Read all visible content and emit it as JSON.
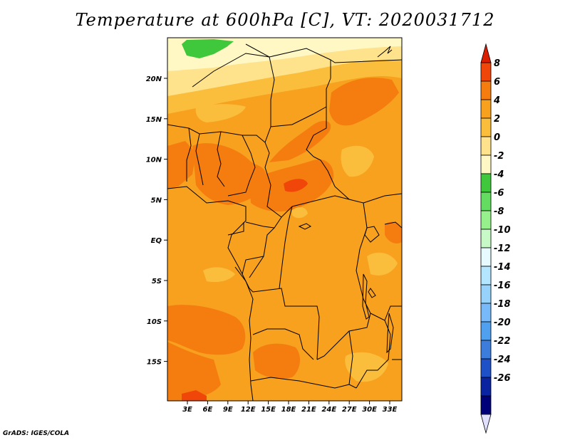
{
  "title": "Temperature at 600hPa [C], VT: 2020031712",
  "credit": "GrADS: IGES/COLA",
  "lat_ticks": [
    "20N",
    "15N",
    "10N",
    "5N",
    "EQ",
    "5S",
    "10S",
    "15S"
  ],
  "lon_ticks": [
    "3E",
    "6E",
    "9E",
    "12E",
    "15E",
    "18E",
    "21E",
    "24E",
    "27E",
    "30E",
    "33E"
  ],
  "colorbar": {
    "labels": [
      "8",
      "6",
      "4",
      "2",
      "0",
      "-2",
      "-4",
      "-6",
      "-8",
      "-10",
      "-12",
      "-14",
      "-16",
      "-18",
      "-20",
      "-22",
      "-24",
      "-26"
    ],
    "colors": [
      "#dc1e00",
      "#f0460a",
      "#f57d0f",
      "#f7a11e",
      "#fbbe3c",
      "#ffe28c",
      "#fff8c4",
      "#3fc83c",
      "#64dc62",
      "#96f08c",
      "#c8fac8",
      "#e6faff",
      "#b4e6ff",
      "#96d2fa",
      "#78b9fa",
      "#50a0f0",
      "#3c7ddc",
      "#1e50c8",
      "#0a23a0",
      "#000078",
      "#e1e1ff"
    ]
  }
}
